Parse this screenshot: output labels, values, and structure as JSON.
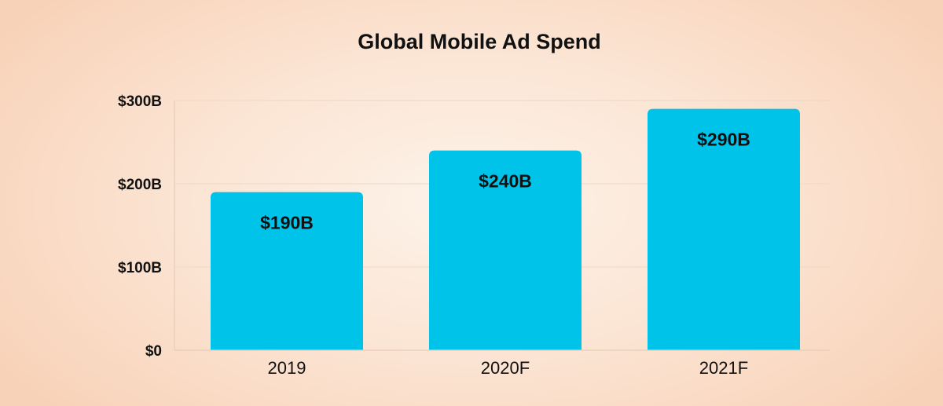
{
  "chart_data": {
    "type": "bar",
    "title": "Global Mobile Ad Spend",
    "xlabel": "",
    "ylabel": "",
    "categories": [
      "2019",
      "2020F",
      "2021F"
    ],
    "values": [
      190,
      240,
      290
    ],
    "value_labels": [
      "$190B",
      "$240B",
      "$290B"
    ],
    "unit": "$B",
    "ylim": [
      0,
      300
    ],
    "y_ticks": [
      0,
      100,
      200,
      300
    ],
    "y_tick_labels": [
      "$0",
      "$100B",
      "$200B",
      "$300B"
    ],
    "grid": true,
    "legend": "none",
    "colors": {
      "bar": "#00c3ea",
      "text": "#111111"
    }
  }
}
